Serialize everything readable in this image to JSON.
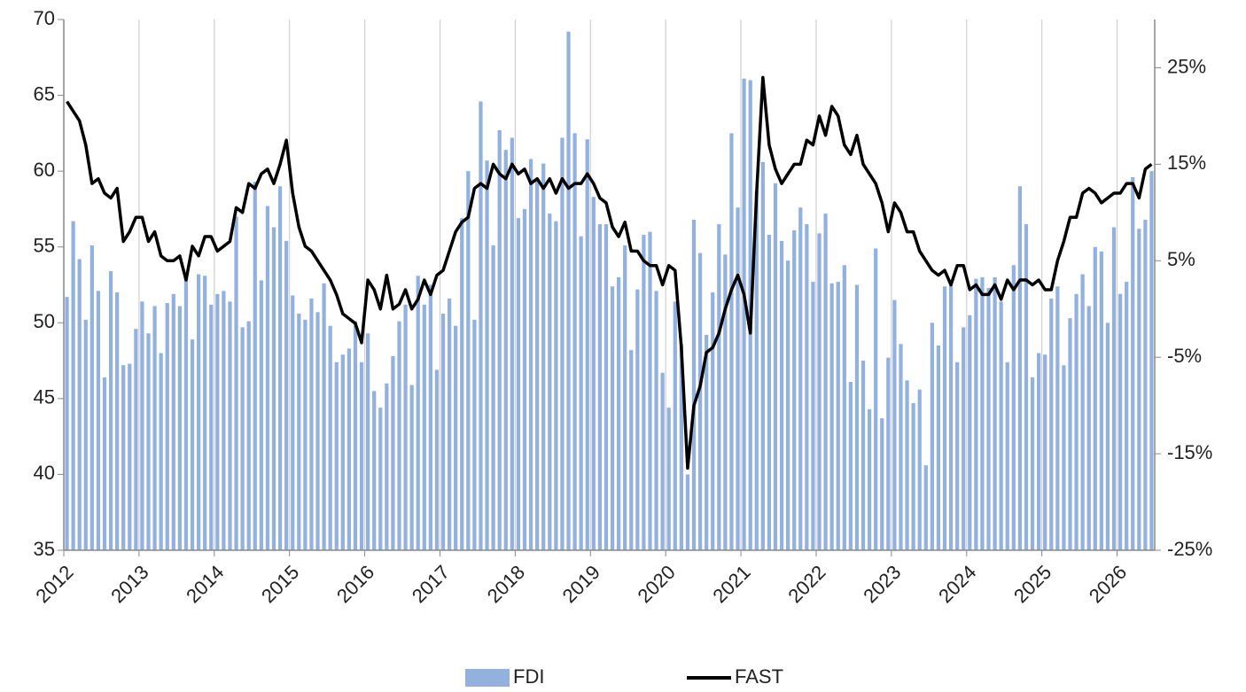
{
  "chart_data": {
    "type": "bar-line",
    "categories": [
      "2012",
      null,
      null,
      null,
      null,
      null,
      null,
      null,
      null,
      null,
      null,
      null,
      "2013",
      null,
      null,
      null,
      null,
      null,
      null,
      null,
      null,
      null,
      null,
      null,
      "2014",
      null,
      null,
      null,
      null,
      null,
      null,
      null,
      null,
      null,
      null,
      null,
      "2015",
      null,
      null,
      null,
      null,
      null,
      null,
      null,
      null,
      null,
      null,
      null,
      "2016",
      null,
      null,
      null,
      null,
      null,
      null,
      null,
      null,
      null,
      null,
      null,
      "2017",
      null,
      null,
      null,
      null,
      null,
      null,
      null,
      null,
      null,
      null,
      null,
      "2018",
      null,
      null,
      null,
      null,
      null,
      null,
      null,
      null,
      null,
      null,
      null,
      "2019",
      null,
      null,
      null,
      null,
      null,
      null,
      null,
      null,
      null,
      null,
      null,
      "2020",
      null,
      null,
      null,
      null,
      null,
      null,
      null,
      null,
      null,
      null,
      null,
      "2021",
      null,
      null,
      null,
      null,
      null,
      null,
      null,
      null,
      null,
      null,
      null,
      "2022",
      null,
      null,
      null,
      null,
      null,
      null,
      null,
      null,
      null,
      null,
      null,
      "2023",
      null,
      null,
      null,
      null,
      null,
      null,
      null,
      null,
      null,
      null,
      null,
      "2024",
      null,
      null,
      null,
      null,
      null,
      null,
      null,
      null,
      null,
      null,
      null,
      "2025",
      null,
      null,
      null,
      null,
      null,
      null,
      null,
      null,
      null,
      null,
      null,
      "2026",
      null,
      null,
      null,
      null,
      null
    ],
    "series": [
      {
        "name": "FDI",
        "type": "bar",
        "color": "#93b1de",
        "values": [
          51.7,
          56.7,
          54.2,
          50.2,
          55.1,
          52.1,
          46.4,
          53.4,
          52.0,
          47.2,
          47.3,
          49.6,
          51.4,
          49.3,
          51.1,
          48.0,
          51.3,
          51.9,
          51.1,
          53.1,
          48.9,
          53.2,
          53.1,
          51.2,
          51.9,
          52.1,
          51.4,
          57.0,
          49.7,
          50.1,
          59.3,
          52.8,
          57.7,
          56.3,
          59.0,
          55.4,
          51.8,
          50.6,
          50.2,
          51.6,
          50.7,
          52.6,
          49.8,
          47.4,
          47.9,
          48.3,
          50.1,
          47.4,
          49.3,
          45.5,
          44.4,
          46.0,
          47.8,
          50.1,
          51.2,
          45.9,
          53.1,
          51.2,
          52.5,
          46.9,
          50.6,
          51.6,
          49.8,
          56.9,
          60.0,
          50.2,
          64.6,
          60.7,
          55.1,
          62.7,
          61.4,
          62.2,
          56.9,
          57.5,
          60.8,
          59.4,
          60.5,
          57.2,
          56.7,
          62.2,
          69.2,
          62.5,
          55.7,
          62.1,
          58.3,
          56.5,
          56.5,
          52.4,
          53.0,
          55.1,
          48.2,
          52.2,
          55.8,
          56.0,
          52.1,
          46.7,
          44.4,
          51.4,
          48.6,
          40.0,
          56.8,
          54.6,
          49.2,
          52.0,
          56.5,
          54.5,
          62.5,
          57.6,
          66.1,
          66.0,
          58.7,
          60.6,
          55.8,
          59.2,
          55.4,
          54.1,
          56.1,
          57.6,
          56.5,
          52.7,
          55.9,
          57.2,
          52.6,
          52.7,
          53.8,
          46.1,
          52.5,
          47.5,
          44.3,
          54.9,
          43.7,
          47.7,
          51.5,
          48.6,
          46.2,
          44.7,
          45.6,
          40.6,
          50.0,
          48.5,
          52.4,
          52.5,
          47.4,
          49.7,
          50.5,
          52.9,
          53.0,
          52.3,
          53.0,
          51.4,
          47.4,
          53.8,
          59.0,
          56.5,
          46.4,
          48.0,
          47.9,
          51.6,
          52.4,
          47.2,
          50.3,
          51.9,
          53.2,
          51.1,
          55.0,
          54.7,
          50.0,
          56.3,
          51.9,
          52.7,
          59.6,
          56.2,
          56.8,
          60.0
        ]
      },
      {
        "name": "FAST",
        "type": "line",
        "axis": "y2",
        "color": "#000000",
        "values": [
          21.5,
          20.5,
          19.5,
          17,
          13,
          13.5,
          12,
          11.5,
          12.5,
          7,
          8,
          9.5,
          9.5,
          7,
          8,
          5.5,
          5,
          5,
          5.5,
          3,
          6.5,
          5.5,
          7.5,
          7.5,
          6,
          6.5,
          7,
          10.5,
          10,
          13,
          12.5,
          14,
          14.5,
          13,
          15,
          17.5,
          12,
          8.5,
          6.5,
          6,
          5,
          4,
          3,
          1.5,
          -0.5,
          -1,
          -1.5,
          -3.5,
          3,
          2,
          0,
          3.5,
          0,
          0.5,
          2,
          0,
          1,
          3,
          1.5,
          3.5,
          4,
          6,
          8,
          9,
          9.5,
          12.5,
          13,
          12.5,
          15,
          14,
          13.5,
          15,
          14,
          14.5,
          13,
          13.5,
          12.5,
          13.5,
          12,
          13.5,
          12.5,
          13,
          13,
          14,
          13,
          11.5,
          11,
          8.5,
          7.5,
          9,
          6,
          6,
          5,
          4.5,
          4.5,
          2.5,
          4.5,
          4,
          -4,
          -16.5,
          -10,
          -8,
          -4.5,
          -4,
          -2.5,
          0,
          2,
          3.5,
          1.5,
          -2.5,
          12,
          24,
          17,
          14.5,
          13,
          14,
          15,
          15,
          17.5,
          17,
          20,
          18,
          21,
          20,
          17,
          16,
          18,
          15,
          14,
          13,
          11,
          8,
          11,
          10,
          8,
          8,
          6,
          5,
          4,
          3.5,
          4,
          2.5,
          4.5,
          4.5,
          2,
          2.5,
          1.5,
          1.5,
          2.5,
          1,
          3,
          2,
          3,
          3,
          2.5,
          3,
          2,
          2,
          5,
          7,
          9.5,
          9.5,
          12,
          12.5,
          12,
          11,
          11.5,
          12,
          12,
          13,
          13,
          11.5,
          14.5,
          15
        ]
      }
    ],
    "ylim": [
      35,
      70
    ],
    "yticks": [
      35,
      40,
      45,
      50,
      55,
      60,
      65,
      70
    ],
    "y2lim": [
      -25,
      30
    ],
    "y2ticks": [
      {
        "value": -25,
        "label": "-25%"
      },
      {
        "value": -15,
        "label": "-15%"
      },
      {
        "value": -5,
        "label": "-5%"
      },
      {
        "value": 5,
        "label": "5%"
      },
      {
        "value": 15,
        "label": "15%"
      },
      {
        "value": 25,
        "label": "25%"
      }
    ],
    "grid": "x",
    "legend": "bottom"
  }
}
